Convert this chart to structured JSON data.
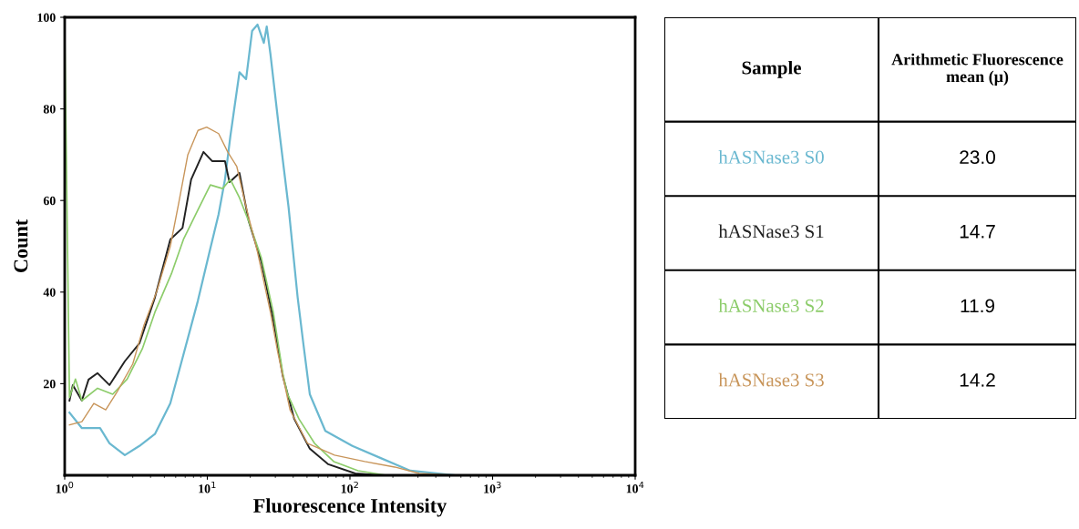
{
  "chart_data": [
    {
      "type": "line",
      "xlabel": "Fluorescence Intensity",
      "ylabel": "Count",
      "log": "x",
      "xlim": [
        1,
        10000
      ],
      "ylim": [
        0,
        100
      ],
      "xticks": [
        {
          "value": 1,
          "label": "10$^{0}$"
        },
        {
          "value": 10,
          "label": "10$^{1}$"
        },
        {
          "value": 100,
          "label": "10$^{2}$"
        },
        {
          "value": 1000,
          "label": "10$^{3}$"
        },
        {
          "value": 10000,
          "label": "10$^{4}$"
        }
      ],
      "yticks": [
        20,
        40,
        60,
        80,
        100
      ],
      "grid": false,
      "legend": false,
      "marker": "none",
      "line_style": "solid",
      "series": [
        {
          "name": "hASNase3 S0",
          "color": "#6ab8d0",
          "x": [
            1.08,
            1.32,
            1.77,
            2.06,
            2.64,
            3.34,
            4.29,
            5.5,
            6.7,
            8.57,
            10.4,
            12.0,
            13.3,
            14.5,
            16.8,
            18.7,
            20.6,
            22.5,
            24.9,
            26.1,
            27.7,
            32.0,
            37.1,
            43.0,
            47.1,
            52.3,
            67.2,
            104,
            163,
            265,
            550,
            10000
          ],
          "values": [
            13.7,
            10.3,
            10.3,
            7,
            4.4,
            6.4,
            9,
            15.7,
            25.6,
            38,
            49,
            57,
            64.6,
            74,
            88,
            86.5,
            97,
            98.4,
            94.4,
            98,
            92,
            75,
            58.6,
            38.8,
            28.8,
            17.7,
            9.7,
            6.4,
            3.8,
            1,
            0,
            0
          ]
        },
        {
          "name": "hASNase3 S1",
          "color": "#222222",
          "x": [
            1.08,
            1.14,
            1.32,
            1.47,
            1.7,
            2.06,
            2.64,
            3.34,
            4.29,
            5.5,
            6.7,
            7.7,
            9.4,
            10.8,
            13.3,
            14.3,
            16.8,
            19.5,
            23.9,
            29,
            33.8,
            40.7,
            52.3,
            70.5,
            109,
            163,
            10000
          ],
          "values": [
            16.3,
            19.7,
            16.3,
            20.9,
            22.3,
            19.7,
            24.9,
            28.8,
            38.8,
            51.5,
            54,
            64.6,
            70.6,
            68.6,
            68.6,
            64,
            66,
            55.5,
            46.7,
            34,
            21.7,
            12.3,
            5.8,
            2.4,
            0.4,
            0,
            0
          ]
        },
        {
          "name": "hASNase3 S2",
          "color": "#8ccc6a",
          "x": [
            1.0,
            1.08,
            1.19,
            1.32,
            1.7,
            2.17,
            2.74,
            3.5,
            4.29,
            5.6,
            6.8,
            8.6,
            10.5,
            12.8,
            14.5,
            16.8,
            19.5,
            23.9,
            29,
            33.8,
            36.5,
            43.9,
            56.4,
            77,
            114,
            180,
            10000
          ],
          "values": [
            97,
            17,
            21,
            16.3,
            19,
            17.7,
            21,
            27.6,
            35.6,
            44,
            51.5,
            58,
            63.4,
            62.6,
            64.6,
            60.6,
            55.5,
            47.5,
            35.6,
            22.3,
            17.7,
            12.3,
            7,
            3,
            1,
            0,
            0
          ]
        },
        {
          "name": "hASNase3 S3",
          "color": "#c8955a",
          "x": [
            1.08,
            1.32,
            1.6,
            1.94,
            2.34,
            3.0,
            3.6,
            4.4,
            5.5,
            6.3,
            7.3,
            8.6,
            9.9,
            12.0,
            13.9,
            16.1,
            18.7,
            22.5,
            27.7,
            31.2,
            38,
            50.3,
            78,
            127,
            206,
            306,
            550,
            10000
          ],
          "values": [
            11,
            11.7,
            15.7,
            14.3,
            18.3,
            24.3,
            32.8,
            40,
            50,
            59.4,
            70,
            75.3,
            76,
            74.6,
            70.6,
            67.4,
            58.6,
            48.7,
            35.6,
            26.8,
            14.3,
            7,
            4.4,
            3,
            1.8,
            0.4,
            0,
            0
          ]
        }
      ]
    },
    {
      "type": "other",
      "annotations": [
        "Sample",
        "Arithmetic Fluorescence mean (μ)"
      ],
      "values": [
        23.0,
        14.7,
        11.9,
        14.2
      ],
      "value_labels": [
        "23.0",
        "14.7",
        "11.9",
        "14.2"
      ]
    }
  ]
}
